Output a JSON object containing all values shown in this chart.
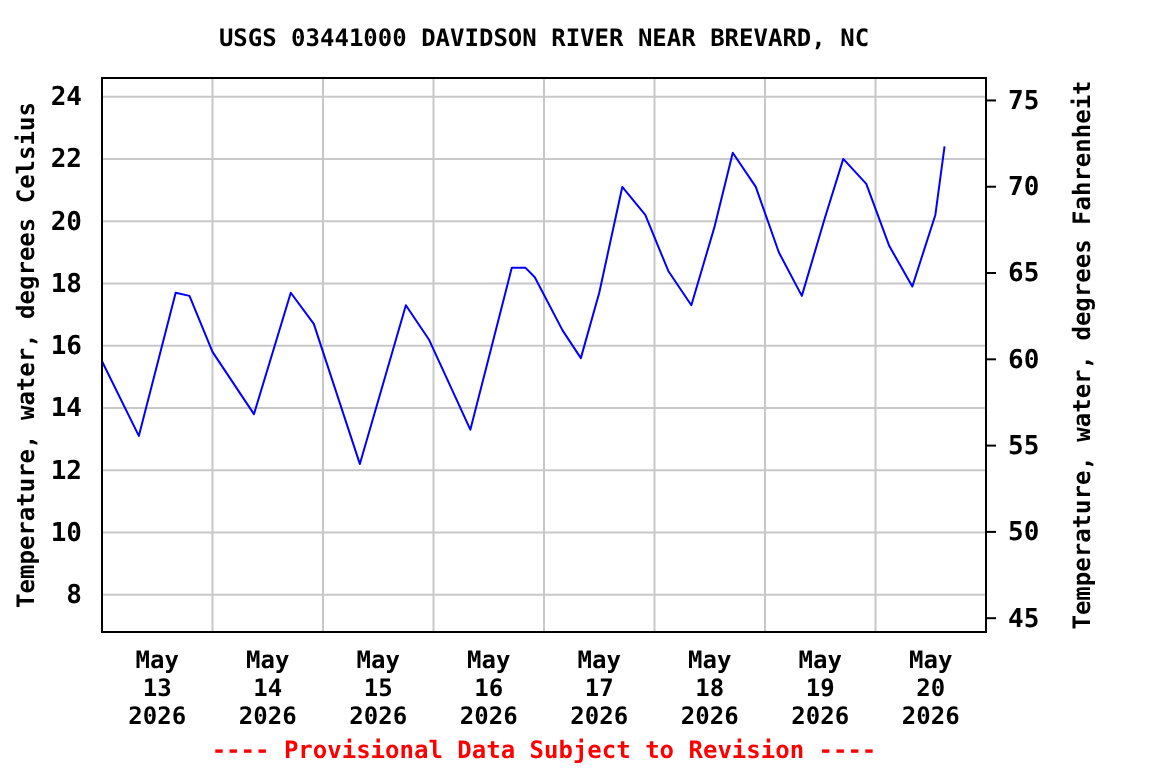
{
  "chart_data": {
    "type": "line",
    "title": "USGS 03441000 DAVIDSON RIVER NEAR BREVARD, NC",
    "ylabel": "Temperature, water, degrees Celsius",
    "y2label": "Temperature, water, degrees Fahrenheit",
    "x": [
      "2026-05-13T00:00",
      "2026-05-13T08:00",
      "2026-05-13T16:00",
      "2026-05-13T19:00",
      "2026-05-14T00:00",
      "2026-05-14T09:00",
      "2026-05-14T17:00",
      "2026-05-14T22:00",
      "2026-05-15T08:00",
      "2026-05-15T18:00",
      "2026-05-15T23:00",
      "2026-05-16T08:00",
      "2026-05-16T17:00",
      "2026-05-16T20:00",
      "2026-05-16T22:00",
      "2026-05-17T04:00",
      "2026-05-17T08:00",
      "2026-05-17T12:00",
      "2026-05-17T17:00",
      "2026-05-17T22:00",
      "2026-05-18T03:00",
      "2026-05-18T08:00",
      "2026-05-18T13:00",
      "2026-05-18T17:00",
      "2026-05-18T22:00",
      "2026-05-19T03:00",
      "2026-05-19T08:00",
      "2026-05-19T13:00",
      "2026-05-19T17:00",
      "2026-05-19T22:00",
      "2026-05-20T03:00",
      "2026-05-20T08:00",
      "2026-05-20T13:00",
      "2026-05-20T15:00"
    ],
    "series": [
      {
        "color": "#0000ff",
        "values": [
          15.5,
          13.1,
          17.7,
          17.6,
          15.8,
          13.8,
          17.7,
          16.7,
          12.2,
          17.3,
          16.2,
          13.3,
          18.5,
          18.5,
          18.2,
          16.5,
          15.6,
          17.7,
          21.1,
          20.2,
          18.4,
          17.3,
          19.8,
          22.2,
          21.1,
          19.0,
          17.6,
          20.1,
          22.0,
          21.2,
          19.2,
          17.9,
          20.2,
          22.4
        ]
      }
    ],
    "xlim": [
      "2026-05-13T00:00",
      "2026-05-21T00:00"
    ],
    "xticks": [
      {
        "value": "2026-05-13T12:00",
        "label": "May 13 2026"
      },
      {
        "value": "2026-05-14T12:00",
        "label": "May 14 2026"
      },
      {
        "value": "2026-05-15T12:00",
        "label": "May 15 2026"
      },
      {
        "value": "2026-05-16T12:00",
        "label": "May 16 2026"
      },
      {
        "value": "2026-05-17T12:00",
        "label": "May 17 2026"
      },
      {
        "value": "2026-05-18T12:00",
        "label": "May 18 2026"
      },
      {
        "value": "2026-05-19T12:00",
        "label": "May 19 2026"
      },
      {
        "value": "2026-05-20T12:00",
        "label": "May 20 2026"
      },
      {
        "value": "2026-05-14T00:00",
        "label": null
      },
      {
        "value": "2026-05-15T00:00",
        "label": null
      },
      {
        "value": "2026-05-16T00:00",
        "label": null
      },
      {
        "value": "2026-05-17T00:00",
        "label": null
      },
      {
        "value": "2026-05-18T00:00",
        "label": null
      },
      {
        "value": "2026-05-19T00:00",
        "label": null
      },
      {
        "value": "2026-05-20T00:00",
        "label": null
      }
    ],
    "ylim": [
      6.8,
      24.6
    ],
    "yticks": [
      8,
      10,
      12,
      14,
      16,
      18,
      20,
      22,
      24
    ],
    "y2lim": [
      44.2,
      76.3
    ],
    "y2ticks": [
      45,
      50,
      55,
      60,
      65,
      70,
      75
    ],
    "grid": true,
    "line_style": "solid",
    "marker": "none",
    "annotations": [
      "---- Provisional Data Subject to Revision ----"
    ]
  }
}
